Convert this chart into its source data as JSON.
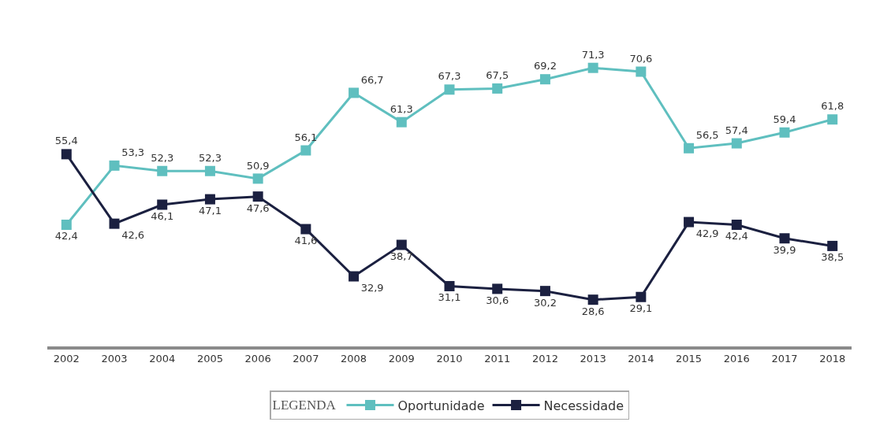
{
  "chart_data": {
    "type": "line",
    "categories": [
      "2002",
      "2003",
      "2004",
      "2005",
      "2006",
      "2007",
      "2008",
      "2009",
      "2010",
      "2011",
      "2012",
      "2013",
      "2014",
      "2015",
      "2016",
      "2017",
      "2018"
    ],
    "series": [
      {
        "name": "Oportunidade",
        "color": "#5fbfbf",
        "values": [
          42.4,
          53.3,
          52.3,
          52.3,
          50.9,
          56.1,
          66.7,
          61.3,
          67.3,
          67.5,
          69.2,
          71.3,
          70.6,
          56.5,
          57.4,
          59.4,
          61.8
        ],
        "value_labels": [
          "42,4",
          "53,3",
          "52,3",
          "52,3",
          "50,9",
          "56,1",
          "66,7",
          "61,3",
          "67,3",
          "67,5",
          "69,2",
          "71,3",
          "70,6",
          "56,5",
          "57,4",
          "59,4",
          "61,8"
        ]
      },
      {
        "name": "Necessidade",
        "color": "#1b2040",
        "values": [
          55.4,
          42.6,
          46.1,
          47.1,
          47.6,
          41.6,
          32.9,
          38.7,
          31.1,
          30.6,
          30.2,
          28.6,
          29.1,
          42.9,
          42.4,
          39.9,
          38.5
        ],
        "value_labels": [
          "55,4",
          "42,6",
          "46,1",
          "47,1",
          "47,6",
          "41,6",
          "32,9",
          "38,7",
          "31,1",
          "30,6",
          "30,2",
          "28,6",
          "29,1",
          "42,9",
          "42,4",
          "39,9",
          "38,5"
        ]
      }
    ],
    "legend_title": "LEGENDA",
    "legend": "bottom",
    "marker": "square",
    "line_style": "solid",
    "grid": false
  }
}
